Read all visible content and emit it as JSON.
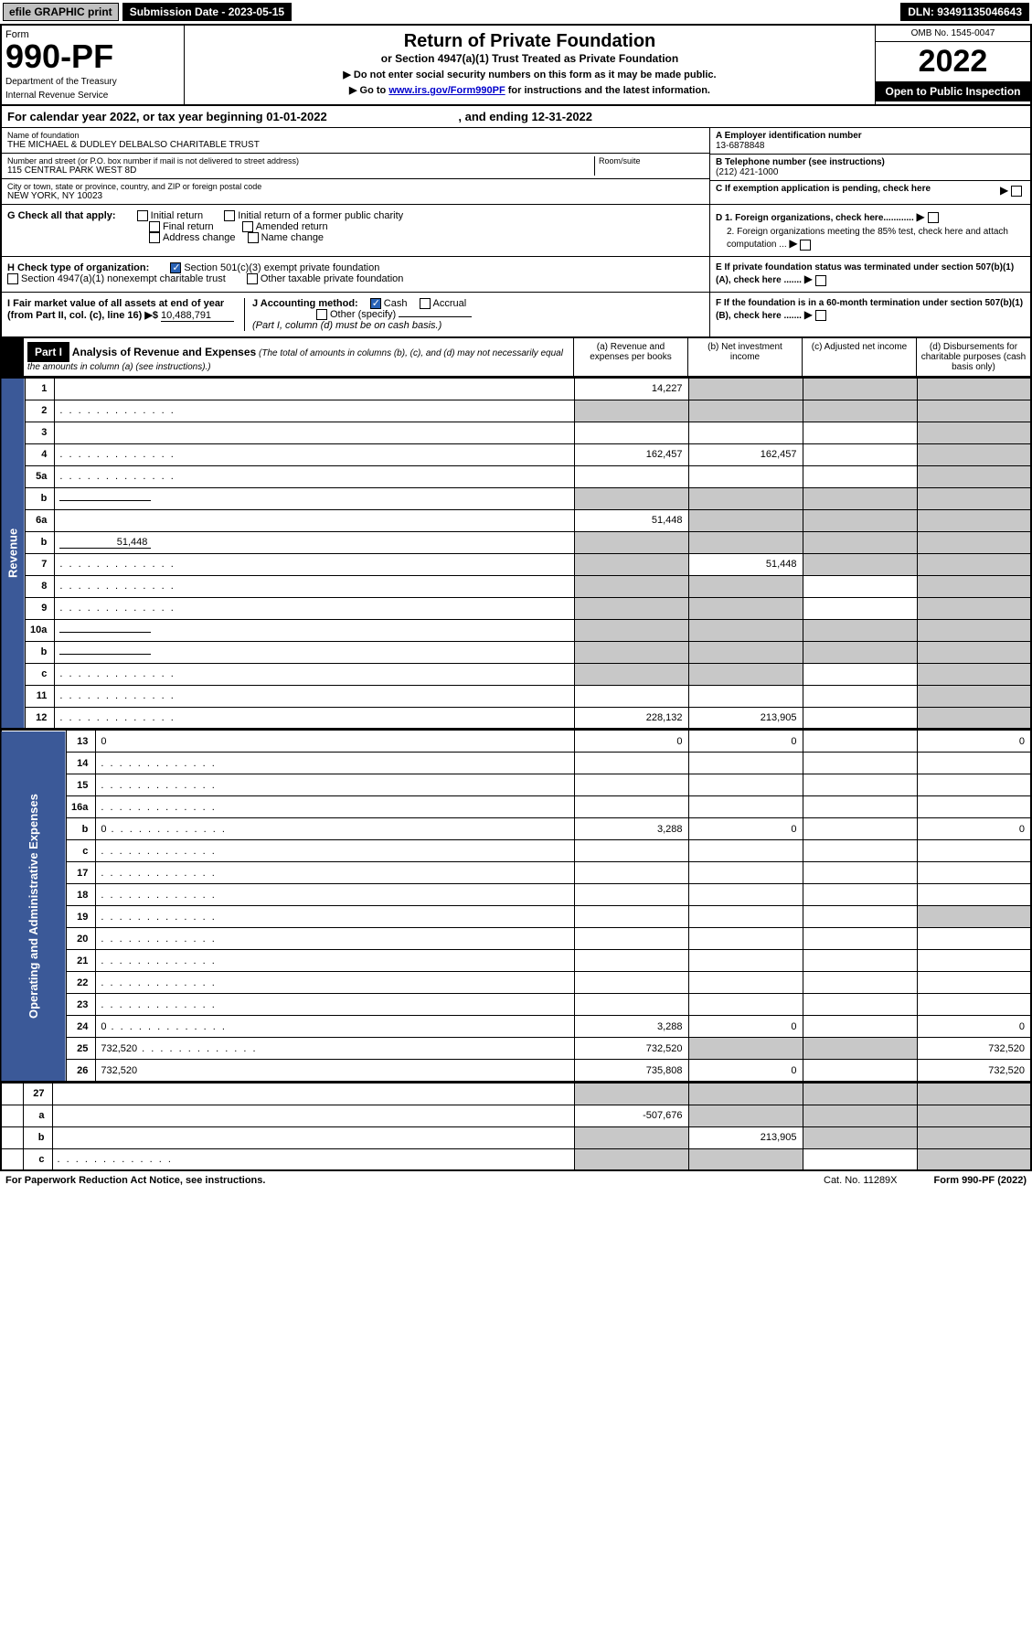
{
  "topbar": {
    "efile": "efile GRAPHIC print",
    "subdate_label": "Submission Date - ",
    "subdate": "2023-05-15",
    "dln_label": "DLN: ",
    "dln": "93491135046643"
  },
  "header": {
    "form": "Form",
    "num": "990-PF",
    "dept": "Department of the Treasury",
    "irs": "Internal Revenue Service",
    "title": "Return of Private Foundation",
    "subtitle": "or Section 4947(a)(1) Trust Treated as Private Foundation",
    "instr1": "▶ Do not enter social security numbers on this form as it may be made public.",
    "instr2_pre": "▶ Go to ",
    "instr2_link": "www.irs.gov/Form990PF",
    "instr2_post": " for instructions and the latest information.",
    "omb": "OMB No. 1545-0047",
    "year": "2022",
    "open": "Open to Public Inspection"
  },
  "calyear": {
    "text": "For calendar year 2022, or tax year beginning 01-01-2022",
    "ending": ", and ending 12-31-2022"
  },
  "entity": {
    "name_label": "Name of foundation",
    "name": "THE MICHAEL & DUDLEY DELBALSO CHARITABLE TRUST",
    "addr_label": "Number and street (or P.O. box number if mail is not delivered to street address)",
    "addr": "115 CENTRAL PARK WEST 8D",
    "room_label": "Room/suite",
    "city_label": "City or town, state or province, country, and ZIP or foreign postal code",
    "city": "NEW YORK, NY  10023",
    "a_label": "A Employer identification number",
    "ein": "13-6878848",
    "b_label": "B Telephone number (see instructions)",
    "phone": "(212) 421-1000",
    "c_label": "C If exemption application is pending, check here"
  },
  "checks": {
    "g": "G Check all that apply:",
    "g_opts": [
      "Initial return",
      "Initial return of a former public charity",
      "Final return",
      "Amended return",
      "Address change",
      "Name change"
    ],
    "h": "H Check type of organization:",
    "h1": "Section 501(c)(3) exempt private foundation",
    "h2": "Section 4947(a)(1) nonexempt charitable trust",
    "h3": "Other taxable private foundation",
    "i_pre": "I Fair market value of all assets at end of year (from Part II, col. (c), line 16) ▶$ ",
    "i_val": "10,488,791",
    "j": "J Accounting method:",
    "j1": "Cash",
    "j2": "Accrual",
    "j3": "Other (specify)",
    "j_note": "(Part I, column (d) must be on cash basis.)",
    "d1": "D 1. Foreign organizations, check here............",
    "d2": "2. Foreign organizations meeting the 85% test, check here and attach computation ...",
    "e": "E  If private foundation status was terminated under section 507(b)(1)(A), check here .......",
    "f": "F  If the foundation is in a 60-month termination under section 507(b)(1)(B), check here .......",
    "arrow": "▶"
  },
  "part1": {
    "label": "Part I",
    "title": "Analysis of Revenue and Expenses",
    "note": " (The total of amounts in columns (b), (c), and (d) may not necessarily equal the amounts in column (a) (see instructions).)",
    "col_a": "(a)  Revenue and expenses per books",
    "col_b": "(b)  Net investment income",
    "col_c": "(c)  Adjusted net income",
    "col_d": "(d)  Disbursements for charitable purposes (cash basis only)"
  },
  "side": {
    "rev": "Revenue",
    "exp": "Operating and Administrative Expenses"
  },
  "rows": [
    {
      "n": "1",
      "d": "",
      "a": "14,227",
      "b": "",
      "c": "",
      "sb": true,
      "sc": true,
      "sd": true
    },
    {
      "n": "2",
      "d": "",
      "a": "",
      "b": "",
      "c": "",
      "sa": true,
      "sb": true,
      "sc": true,
      "sd": true,
      "dots": true
    },
    {
      "n": "3",
      "d": "",
      "a": "",
      "b": "",
      "c": "",
      "sd": true
    },
    {
      "n": "4",
      "d": "",
      "a": "162,457",
      "b": "162,457",
      "c": "",
      "sd": true,
      "dots": true
    },
    {
      "n": "5a",
      "d": "",
      "a": "",
      "b": "",
      "c": "",
      "sd": true,
      "dots": true
    },
    {
      "n": "b",
      "d": "",
      "a": "",
      "b": "",
      "c": "",
      "sa": true,
      "sb": true,
      "sc": true,
      "sd": true,
      "inline": true
    },
    {
      "n": "6a",
      "d": "",
      "a": "51,448",
      "b": "",
      "c": "",
      "sb": true,
      "sc": true,
      "sd": true
    },
    {
      "n": "b",
      "d": "",
      "a": "",
      "b": "",
      "c": "",
      "sa": true,
      "sb": true,
      "sc": true,
      "sd": true,
      "inline": true,
      "ival": "51,448"
    },
    {
      "n": "7",
      "d": "",
      "a": "",
      "b": "51,448",
      "c": "",
      "sa": true,
      "sc": true,
      "sd": true,
      "dots": true
    },
    {
      "n": "8",
      "d": "",
      "a": "",
      "b": "",
      "c": "",
      "sa": true,
      "sb": true,
      "sd": true,
      "dots": true
    },
    {
      "n": "9",
      "d": "",
      "a": "",
      "b": "",
      "c": "",
      "sa": true,
      "sb": true,
      "sd": true,
      "dots": true
    },
    {
      "n": "10a",
      "d": "",
      "a": "",
      "b": "",
      "c": "",
      "sa": true,
      "sb": true,
      "sc": true,
      "sd": true,
      "inline": true
    },
    {
      "n": "b",
      "d": "",
      "a": "",
      "b": "",
      "c": "",
      "sa": true,
      "sb": true,
      "sc": true,
      "sd": true,
      "inline": true,
      "dots": true
    },
    {
      "n": "c",
      "d": "",
      "a": "",
      "b": "",
      "c": "",
      "sa": true,
      "sb": true,
      "sd": true,
      "dots": true
    },
    {
      "n": "11",
      "d": "",
      "a": "",
      "b": "",
      "c": "",
      "sd": true,
      "dots": true
    },
    {
      "n": "12",
      "d": "",
      "a": "228,132",
      "b": "213,905",
      "c": "",
      "sd": true,
      "dots": true
    }
  ],
  "erows": [
    {
      "n": "13",
      "d": "0",
      "a": "0",
      "b": "0",
      "c": ""
    },
    {
      "n": "14",
      "d": "",
      "a": "",
      "b": "",
      "c": "",
      "dots": true
    },
    {
      "n": "15",
      "d": "",
      "a": "",
      "b": "",
      "c": "",
      "dots": true
    },
    {
      "n": "16a",
      "d": "",
      "a": "",
      "b": "",
      "c": "",
      "dots": true
    },
    {
      "n": "b",
      "d": "0",
      "a": "3,288",
      "b": "0",
      "c": "",
      "dots": true
    },
    {
      "n": "c",
      "d": "",
      "a": "",
      "b": "",
      "c": "",
      "dots": true
    },
    {
      "n": "17",
      "d": "",
      "a": "",
      "b": "",
      "c": "",
      "dots": true
    },
    {
      "n": "18",
      "d": "",
      "a": "",
      "b": "",
      "c": "",
      "dots": true
    },
    {
      "n": "19",
      "d": "",
      "a": "",
      "b": "",
      "c": "",
      "sd": true,
      "dots": true
    },
    {
      "n": "20",
      "d": "",
      "a": "",
      "b": "",
      "c": "",
      "dots": true
    },
    {
      "n": "21",
      "d": "",
      "a": "",
      "b": "",
      "c": "",
      "dots": true
    },
    {
      "n": "22",
      "d": "",
      "a": "",
      "b": "",
      "c": "",
      "dots": true
    },
    {
      "n": "23",
      "d": "",
      "a": "",
      "b": "",
      "c": "",
      "dots": true
    },
    {
      "n": "24",
      "d": "0",
      "a": "3,288",
      "b": "0",
      "c": "",
      "dots": true
    },
    {
      "n": "25",
      "d": "732,520",
      "a": "732,520",
      "b": "",
      "c": "",
      "sb": true,
      "sc": true,
      "dots": true
    },
    {
      "n": "26",
      "d": "732,520",
      "a": "735,808",
      "b": "0",
      "c": ""
    }
  ],
  "brows": [
    {
      "n": "27",
      "d": "",
      "a": "",
      "b": "",
      "c": "",
      "sa": true,
      "sb": true,
      "sc": true,
      "sd": true
    },
    {
      "n": "a",
      "d": "",
      "a": "-507,676",
      "b": "",
      "c": "",
      "sb": true,
      "sc": true,
      "sd": true
    },
    {
      "n": "b",
      "d": "",
      "a": "",
      "b": "213,905",
      "c": "",
      "sa": true,
      "sc": true,
      "sd": true
    },
    {
      "n": "c",
      "d": "",
      "a": "",
      "b": "",
      "c": "",
      "sa": true,
      "sb": true,
      "sd": true,
      "dots": true
    }
  ],
  "footer": {
    "pra": "For Paperwork Reduction Act Notice, see instructions.",
    "cat": "Cat. No. 11289X",
    "form": "Form 990-PF (2022)"
  }
}
